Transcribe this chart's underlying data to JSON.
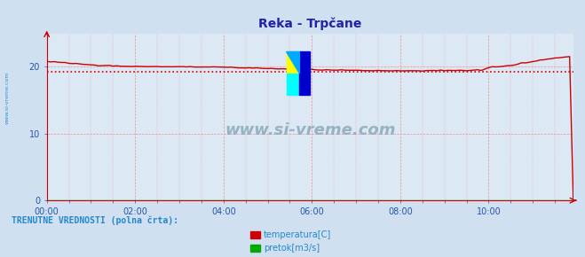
{
  "title": "Reka - Trpčane",
  "bg_color": "#d0e0f0",
  "plot_bg_color": "#dce8f4",
  "grid_color": "#ee8888",
  "title_color": "#2222aa",
  "axis_label_color": "#2255aa",
  "legend_text_color": "#2288cc",
  "xlim": [
    0,
    143
  ],
  "ylim": [
    0,
    25
  ],
  "yticks": [
    0,
    10,
    20
  ],
  "xtick_labels": [
    "00:00",
    "02:00",
    "04:00",
    "06:00",
    "08:00",
    "10:00"
  ],
  "xtick_positions": [
    0,
    24,
    48,
    72,
    96,
    120
  ],
  "temp_color": "#cc0000",
  "pretok_color": "#00aa00",
  "avg_value": 19.3,
  "legend_label1": "temperatura[C]",
  "legend_label2": "pretok[m3/s]",
  "bottom_text": "TRENUTNE VREDNOSTI (polna črta):",
  "watermark": "www.si-vreme.com",
  "watermark_color": "#8aaabb",
  "left_text": "www.si-vreme.com"
}
